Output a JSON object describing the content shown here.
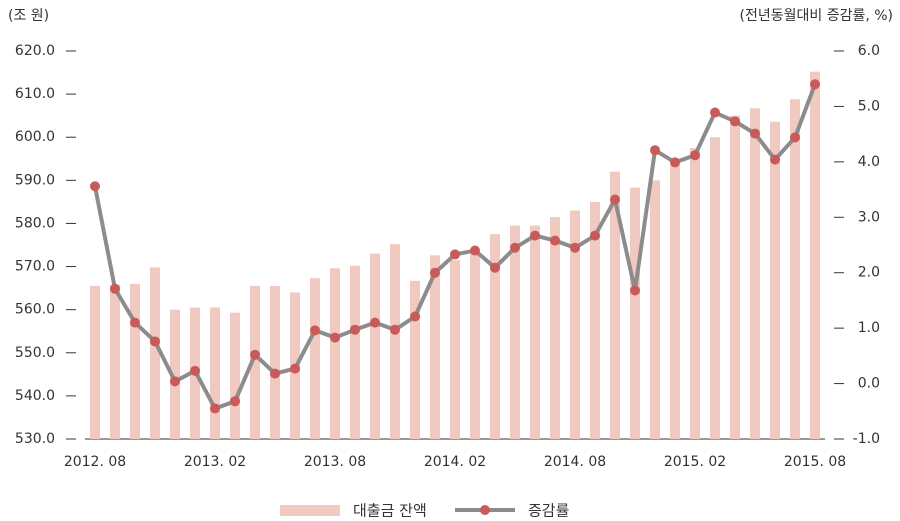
{
  "chart_data": {
    "type": "bar_line",
    "y_label": "(조 원)",
    "y2_label": "(전년동월대비 증감률, %)",
    "categories": [
      "2012. 08",
      null,
      null,
      null,
      null,
      null,
      "2013. 02",
      null,
      null,
      null,
      null,
      null,
      "2013. 08",
      null,
      null,
      null,
      null,
      null,
      "2014. 02",
      null,
      null,
      null,
      null,
      null,
      "2014. 08",
      null,
      null,
      null,
      null,
      null,
      "2015. 02",
      null,
      null,
      null,
      null,
      null,
      "2015. 08"
    ],
    "series": [
      {
        "name": "대출금 잔액",
        "type": "bar",
        "color": "#f0c9c1",
        "values": [
          565.5,
          565.8,
          566,
          569.8,
          560,
          560.5,
          560.5,
          559.3,
          565.5,
          565.5,
          564,
          567.3,
          569.6,
          570.2,
          573,
          575.2,
          566.7,
          572.6,
          571.5,
          573,
          577.5,
          579.5,
          579.5,
          581.5,
          583,
          585,
          592,
          588.3,
          590,
          593.5,
          597.5,
          600,
          605,
          606.7,
          603.6,
          608.8,
          615.2
        ]
      },
      {
        "name": "증감률",
        "type": "line",
        "axis": "y2",
        "color": "#8c8c8c",
        "marker_color": "#c85a5a",
        "values": [
          3.56,
          1.71,
          1.1,
          0.76,
          0.04,
          0.23,
          -0.45,
          -0.32,
          0.52,
          0.18,
          0.27,
          0.96,
          0.83,
          0.97,
          1.1,
          0.97,
          1.21,
          2.0,
          2.33,
          2.4,
          2.09,
          2.45,
          2.67,
          2.58,
          2.45,
          2.67,
          3.32,
          1.68,
          4.21,
          3.99,
          4.12,
          4.89,
          4.73,
          4.51,
          4.04,
          4.44,
          5.4
        ]
      }
    ],
    "ylim": [
      530,
      620
    ],
    "yticks": [
      {
        "value": 530,
        "label": "530.0"
      },
      {
        "value": 540,
        "label": "540.0"
      },
      {
        "value": 550,
        "label": "550.0"
      },
      {
        "value": 560,
        "label": "560.0"
      },
      {
        "value": 570,
        "label": "570.0"
      },
      {
        "value": 580,
        "label": "580.0"
      },
      {
        "value": 590,
        "label": "590.0"
      },
      {
        "value": 600,
        "label": "600.0"
      },
      {
        "value": 610,
        "label": "610.0"
      },
      {
        "value": 620,
        "label": "620.0"
      }
    ],
    "y2lim": [
      -1,
      6
    ],
    "y2ticks": [
      {
        "value": -1,
        "label": "-1.0"
      },
      {
        "value": 0,
        "label": "0.0"
      },
      {
        "value": 1,
        "label": "1.0"
      },
      {
        "value": 2,
        "label": "2.0"
      },
      {
        "value": 3,
        "label": "3.0"
      },
      {
        "value": 4,
        "label": "4.0"
      },
      {
        "value": 5,
        "label": "5.0"
      },
      {
        "value": 6,
        "label": "6.0"
      }
    ],
    "legend": "bottom"
  }
}
